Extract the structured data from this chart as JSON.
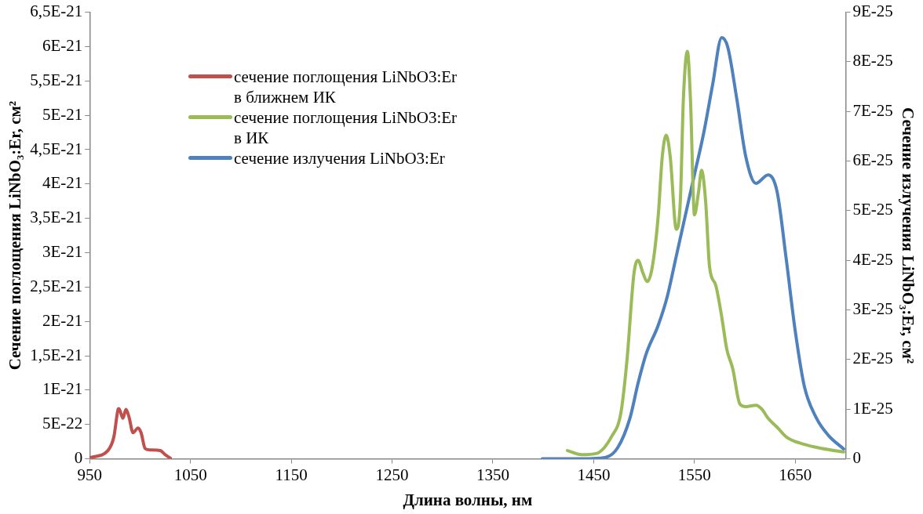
{
  "chart_data": {
    "type": "line",
    "xlabel": "Длина волны, нм",
    "ylabel": "Сечение поглощения LiNbO₃:Er, см²",
    "y2label": "Сечение излучения LiNbO₃:Er, см²",
    "xlim": [
      950,
      1700
    ],
    "xticks": [
      950,
      1050,
      1150,
      1250,
      1350,
      1450,
      1550,
      1650
    ],
    "ylim": [
      0,
      6.5e-21
    ],
    "yticks": [
      {
        "value": 0,
        "label": "0"
      },
      {
        "value": 5e-22,
        "label": "5E-22"
      },
      {
        "value": 1e-21,
        "label": "1E-21"
      },
      {
        "value": 1.5e-21,
        "label": "1,5E-21"
      },
      {
        "value": 2e-21,
        "label": "2E-21"
      },
      {
        "value": 2.5e-21,
        "label": "2,5E-21"
      },
      {
        "value": 3e-21,
        "label": "3E-21"
      },
      {
        "value": 3.5e-21,
        "label": "3,5E-21"
      },
      {
        "value": 4e-21,
        "label": "4E-21"
      },
      {
        "value": 4.5e-21,
        "label": "4,5E-21"
      },
      {
        "value": 5e-21,
        "label": "5E-21"
      },
      {
        "value": 5.5e-21,
        "label": "5,5E-21"
      },
      {
        "value": 6e-21,
        "label": "6E-21"
      },
      {
        "value": 6.5e-21,
        "label": "6,5E-21"
      }
    ],
    "y2lim": [
      0,
      9e-25
    ],
    "y2ticks": [
      {
        "value": 0,
        "label": "0"
      },
      {
        "value": 1e-25,
        "label": "1E-25"
      },
      {
        "value": 2e-25,
        "label": "2E-25"
      },
      {
        "value": 3e-25,
        "label": "3E-25"
      },
      {
        "value": 4e-25,
        "label": "4E-25"
      },
      {
        "value": 5e-25,
        "label": "5E-25"
      },
      {
        "value": 6e-25,
        "label": "6E-25"
      },
      {
        "value": 7e-25,
        "label": "7E-25"
      },
      {
        "value": 8e-25,
        "label": "8E-25"
      },
      {
        "value": 9e-25,
        "label": "9E-25"
      }
    ],
    "legend": "top left",
    "marker": "none",
    "series": [
      {
        "name": "сечение поглощения LiNbO3:Er в ближнем ИК",
        "color": "#c0504d",
        "x": [
          951,
          968,
          974,
          978,
          979,
          983,
          986,
          989,
          993,
          998,
          1001,
          1005,
          1010,
          1020,
          1025,
          1030
        ],
        "values": [
          2e-23,
          1.2e-22,
          3.2e-22,
          7.1e-22,
          7.3e-22,
          5.9e-22,
          7.2e-22,
          6.1e-22,
          3.8e-22,
          4.5e-22,
          3.8e-22,
          1.5e-22,
          1.3e-22,
          1.2e-22,
          6e-23,
          1e-23
        ]
      },
      {
        "name": "сечение поглощения LiNbO3:Er в ИК",
        "color": "#9bbb59",
        "x": [
          1424,
          1438,
          1453,
          1468,
          1477,
          1483,
          1490,
          1494,
          1499,
          1503,
          1508,
          1514,
          1518,
          1522,
          1526,
          1532,
          1536,
          1539,
          1543,
          1546,
          1550,
          1554,
          1557,
          1561,
          1565,
          1571,
          1577,
          1582,
          1588,
          1595,
          1601,
          1611,
          1617,
          1623,
          1632,
          1641,
          1659,
          1677,
          1698
        ],
        "values": [
          1.2e-22,
          6e-23,
          8e-23,
          3.3e-22,
          6.7e-22,
          1.43e-21,
          2.7e-21,
          2.89e-21,
          2.7e-21,
          2.58e-21,
          2.78e-21,
          3.53e-21,
          4.39e-21,
          4.71e-21,
          4.39e-21,
          3.34e-21,
          3.76e-21,
          5.24e-21,
          5.93e-21,
          5.24e-21,
          3.55e-21,
          3.88e-21,
          4.2e-21,
          3.76e-21,
          2.79e-21,
          2.53e-21,
          2.07e-21,
          1.6e-21,
          1.31e-21,
          8e-22,
          7.6e-22,
          7.8e-22,
          7.2e-22,
          5.9e-22,
          4.6e-22,
          3.2e-22,
          2.1e-22,
          1.5e-22,
          1e-22
        ]
      },
      {
        "name": "сечение излучения LiNbO3:Er",
        "color": "#4f81bd",
        "axis": "y2",
        "x": [
          1399,
          1441,
          1462,
          1474,
          1486,
          1494,
          1502,
          1514,
          1523,
          1532,
          1541,
          1550,
          1559,
          1568,
          1577,
          1583,
          1592,
          1601,
          1611,
          1623,
          1632,
          1641,
          1650,
          1659,
          1671,
          1683,
          1698
        ],
        "values": [
          0,
          0,
          3e-27,
          2.3e-26,
          8.2e-26,
          1.52e-25,
          2.11e-25,
          2.69e-25,
          3.27e-25,
          4.09e-25,
          4.91e-25,
          5.73e-25,
          6.55e-25,
          7.54e-25,
          8.49e-25,
          8.3e-25,
          7.25e-25,
          6.08e-25,
          5.55e-25,
          5.72e-25,
          5.38e-25,
          4.03e-25,
          2.57e-25,
          1.46e-25,
          8.2e-26,
          4.7e-26,
          2e-26
        ]
      }
    ]
  }
}
